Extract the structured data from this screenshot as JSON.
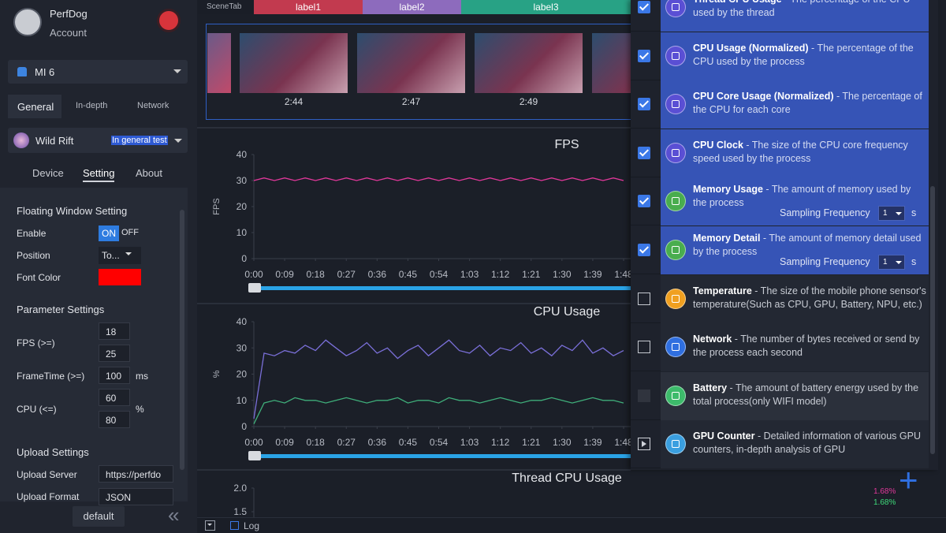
{
  "sidebar": {
    "user": {
      "name": "PerfDog",
      "account": "Account"
    },
    "device": "MI 6",
    "tabs": [
      "General",
      "In-depth",
      "Network"
    ],
    "app": {
      "name": "Wild Rift",
      "badge": "In general test"
    },
    "subtabs": [
      "Device",
      "Setting",
      "About"
    ],
    "floating": {
      "title": "Floating Window Setting",
      "enable_label": "Enable",
      "on": "ON",
      "off": "OFF",
      "position_label": "Position",
      "position_value": "To...",
      "font_color_label": "Font Color",
      "font_color": "#ff0000"
    },
    "params": {
      "title": "Parameter Settings",
      "fps_label": "FPS (>=)",
      "fps_values": [
        "18",
        "25"
      ],
      "frametime_label": "FrameTime (>=)",
      "frametime_value": "100",
      "frametime_unit": "ms",
      "cpu_label": "CPU (<=)",
      "cpu_values": [
        "60",
        "80"
      ],
      "cpu_unit": "%"
    },
    "upload": {
      "title": "Upload Settings",
      "server_label": "Upload Server",
      "server_value": "https://perfdo",
      "format_label": "Upload Format",
      "format_value": "JSON"
    },
    "default_button": "default"
  },
  "scene": {
    "label": "SceneTab",
    "tabs": [
      {
        "name": "label1",
        "color": "#c23a4f"
      },
      {
        "name": "label2",
        "color": "#8d6bbd"
      },
      {
        "name": "label3",
        "color": "#28a285"
      }
    ],
    "thumbnail_times": [
      "2:44",
      "2:47",
      "2:49"
    ]
  },
  "charts": [
    {
      "type": "line",
      "title": "FPS",
      "y_label": "FPS",
      "ylim": [
        0,
        40
      ],
      "yticks": [
        0,
        10,
        20,
        30,
        40
      ],
      "xlim": [
        0,
        108
      ],
      "xticks": [
        {
          "value": 0,
          "label": "0:00"
        },
        {
          "value": 9,
          "label": "0:09"
        },
        {
          "value": 18,
          "label": "0:18"
        },
        {
          "value": 27,
          "label": "0:27"
        },
        {
          "value": 36,
          "label": "0:36"
        },
        {
          "value": 45,
          "label": "0:45"
        },
        {
          "value": 54,
          "label": "0:54"
        },
        {
          "value": 63,
          "label": "1:03"
        },
        {
          "value": 72,
          "label": "1:12"
        },
        {
          "value": 81,
          "label": "1:21"
        },
        {
          "value": 90,
          "label": "1:30"
        },
        {
          "value": 99,
          "label": "1:39"
        },
        {
          "value": 108,
          "label": "1:48"
        }
      ],
      "x": [
        0,
        3,
        6,
        9,
        12,
        15,
        18,
        21,
        24,
        27,
        30,
        33,
        36,
        39,
        42,
        45,
        48,
        51,
        54,
        57,
        60,
        63,
        66,
        69,
        72,
        75,
        78,
        81,
        84,
        87,
        90,
        93,
        96,
        99,
        102,
        105,
        108
      ],
      "series": [
        {
          "color": "#e0389a",
          "values": [
            30,
            31,
            30,
            31,
            30,
            31,
            30,
            31,
            30,
            31,
            30,
            31,
            30,
            31,
            30,
            31,
            30,
            31,
            30,
            31,
            30,
            31,
            30,
            31,
            30,
            31,
            30,
            31,
            30,
            31,
            30,
            31,
            30,
            31,
            30,
            31,
            30
          ]
        }
      ]
    },
    {
      "type": "line",
      "title": "CPU Usage",
      "y_label": "%",
      "ylim": [
        0,
        40
      ],
      "yticks": [
        0,
        10,
        20,
        30,
        40
      ],
      "xlim": [
        0,
        108
      ],
      "xticks": [
        {
          "value": 0,
          "label": "0:00"
        },
        {
          "value": 9,
          "label": "0:09"
        },
        {
          "value": 18,
          "label": "0:18"
        },
        {
          "value": 27,
          "label": "0:27"
        },
        {
          "value": 36,
          "label": "0:36"
        },
        {
          "value": 45,
          "label": "0:45"
        },
        {
          "value": 54,
          "label": "0:54"
        },
        {
          "value": 63,
          "label": "1:03"
        },
        {
          "value": 72,
          "label": "1:12"
        },
        {
          "value": 81,
          "label": "1:21"
        },
        {
          "value": 90,
          "label": "1:30"
        },
        {
          "value": 99,
          "label": "1:39"
        },
        {
          "value": 108,
          "label": "1:48"
        }
      ],
      "x": [
        0,
        3,
        6,
        9,
        12,
        15,
        18,
        21,
        24,
        27,
        30,
        33,
        36,
        39,
        42,
        45,
        48,
        51,
        54,
        57,
        60,
        63,
        66,
        69,
        72,
        75,
        78,
        81,
        84,
        87,
        90,
        93,
        96,
        99,
        102,
        105,
        108
      ],
      "series": [
        {
          "color": "#7a6fd8",
          "values": [
            3,
            28,
            27,
            29,
            28,
            31,
            29,
            33,
            30,
            27,
            29,
            32,
            28,
            30,
            26,
            29,
            31,
            27,
            30,
            33,
            29,
            28,
            31,
            27,
            30,
            29,
            32,
            28,
            30,
            27,
            31,
            29,
            33,
            28,
            30,
            27,
            29
          ]
        },
        {
          "color": "#3fae7a",
          "values": [
            1,
            9,
            10,
            9,
            11,
            10,
            10,
            9,
            10,
            11,
            10,
            9,
            10,
            10,
            11,
            9,
            10,
            10,
            9,
            11,
            10,
            10,
            9,
            10,
            11,
            10,
            9,
            10,
            10,
            11,
            10,
            9,
            10,
            11,
            10,
            10,
            9
          ]
        }
      ]
    },
    {
      "type": "line",
      "title": "Thread CPU Usage",
      "ylim": [
        1,
        2
      ],
      "yticks": [
        {
          "value": 2,
          "label": "2.0"
        },
        {
          "value": 1.5,
          "label": "1.5"
        }
      ],
      "legend_values": [
        "1.68%",
        "1.68%"
      ]
    }
  ],
  "metrics": [
    {
      "name": "Thread CPU Usage",
      "desc": "- The percentage of the CPU used by the thread",
      "checked": true,
      "icon_color": "#5a4fd4"
    },
    {
      "name": "CPU Usage (Normalized)",
      "desc": "- The percentage of the CPU used by the process",
      "checked": true,
      "icon_color": "#5a4fd4"
    },
    {
      "name": "CPU Core Usage (Normalized)",
      "desc": "- The percentage of the CPU for each core",
      "checked": true,
      "icon_color": "#5a4fd4"
    },
    {
      "name": "CPU Clock",
      "desc": "- The size of the CPU core frequency speed used by the process",
      "checked": true,
      "icon_color": "#5a4fd4"
    },
    {
      "name": "Memory Usage",
      "desc": "- The amount of memory used by the process",
      "checked": true,
      "icon_color": "#49ad4e",
      "sampling": {
        "label": "Sampling Frequency",
        "value": "1",
        "unit": "s"
      }
    },
    {
      "name": "Memory Detail",
      "desc": "- The amount of memory detail used by the process",
      "checked": true,
      "icon_color": "#49ad4e",
      "sampling": {
        "label": "Sampling Frequency",
        "value": "1",
        "unit": "s"
      }
    },
    {
      "name": "Temperature",
      "desc": "- The size of the mobile phone sensor's temperature(Such as CPU, GPU, Battery, NPU, etc.)",
      "checked": false,
      "icon_color": "#f0a020"
    },
    {
      "name": "Network",
      "desc": "- The number of bytes received or send by the process each second",
      "checked": false,
      "icon_color": "#2f6fe0"
    },
    {
      "name": "Battery",
      "desc": "- The amount of battery energy used by the total process(only WIFI model)",
      "checked": false,
      "disabled": true,
      "icon_color": "#3dbb6b"
    },
    {
      "name": "GPU Counter",
      "desc": "- Detailed information of various GPU counters, in-depth analysis of GPU",
      "checked": false,
      "control": "play",
      "icon_color": "#3a9fe0"
    }
  ],
  "footer": {
    "log": "Log"
  }
}
